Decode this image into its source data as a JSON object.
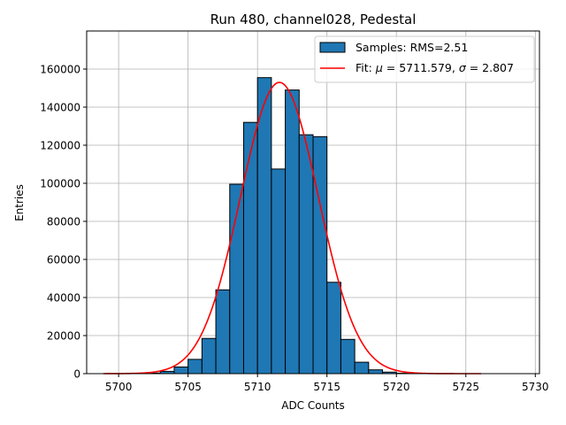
{
  "chart_data": {
    "type": "bar",
    "title": "Run 480, channel028, Pedestal",
    "xlabel": "ADC Counts",
    "ylabel": "Entries",
    "xlim": [
      5697.7,
      5730.3
    ],
    "ylim": [
      0,
      180000
    ],
    "xticks": [
      5700,
      5705,
      5710,
      5715,
      5720,
      5725,
      5730
    ],
    "yticks": [
      0,
      20000,
      40000,
      60000,
      80000,
      100000,
      120000,
      140000,
      160000
    ],
    "grid": true,
    "bin_width": 1,
    "bins": [
      {
        "left": 5702.0,
        "value": 300
      },
      {
        "left": 5703.0,
        "value": 1200
      },
      {
        "left": 5704.0,
        "value": 3500
      },
      {
        "left": 5705.0,
        "value": 7500
      },
      {
        "left": 5706.0,
        "value": 18500
      },
      {
        "left": 5707.0,
        "value": 44000
      },
      {
        "left": 5708.0,
        "value": 99500
      },
      {
        "left": 5709.0,
        "value": 132000
      },
      {
        "left": 5710.0,
        "value": 155500
      },
      {
        "left": 5711.0,
        "value": 107500
      },
      {
        "left": 5712.0,
        "value": 149000
      },
      {
        "left": 5713.0,
        "value": 125500
      },
      {
        "left": 5714.0,
        "value": 124500
      },
      {
        "left": 5715.0,
        "value": 48000
      },
      {
        "left": 5716.0,
        "value": 18000
      },
      {
        "left": 5717.0,
        "value": 6000
      },
      {
        "left": 5718.0,
        "value": 2000
      },
      {
        "left": 5719.0,
        "value": 800
      },
      {
        "left": 5720.0,
        "value": 200
      }
    ],
    "fit": {
      "type": "gaussian",
      "mu": 5711.579,
      "sigma": 2.807,
      "amplitude": 153000,
      "x_range": [
        5698.9,
        5726.1
      ]
    },
    "legend": {
      "position": "top-right",
      "entries": [
        {
          "label": "Samples: RMS=2.51",
          "kind": "patch",
          "color": "#1f77b4"
        },
        {
          "label_prefix": "Fit: ",
          "mu_symbol": "μ",
          "mu_text": " = 5711.579, ",
          "sigma_symbol": "σ",
          "sigma_text": " = 2.807",
          "kind": "line",
          "color": "#ff0000"
        }
      ]
    }
  }
}
